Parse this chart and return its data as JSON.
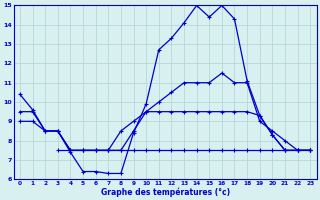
{
  "xlabel": "Graphe des températures (°c)",
  "bg_color": "#d8f0f0",
  "line_color": "#0000cc",
  "grid_color": "#b0d4d4",
  "xlim": [
    -0.5,
    23.5
  ],
  "ylim": [
    6,
    15
  ],
  "yticks": [
    6,
    7,
    8,
    9,
    10,
    11,
    12,
    13,
    14,
    15
  ],
  "xticks": [
    0,
    1,
    2,
    3,
    4,
    5,
    6,
    7,
    8,
    9,
    10,
    11,
    12,
    13,
    14,
    15,
    16,
    17,
    18,
    19,
    20,
    21,
    22,
    23
  ],
  "s1_x": [
    0,
    1,
    2,
    3,
    4,
    5,
    6,
    7,
    8,
    9,
    10,
    11,
    12,
    13,
    14,
    15,
    16,
    17,
    18,
    19,
    20,
    21,
    22,
    23
  ],
  "s1_y": [
    10.4,
    9.6,
    8.5,
    8.5,
    7.4,
    6.4,
    6.4,
    6.3,
    6.3,
    8.4,
    9.9,
    12.7,
    13.3,
    14.1,
    15.0,
    14.4,
    15.0,
    14.3,
    11.1,
    9.3,
    8.3,
    7.5,
    7.5,
    7.5
  ],
  "s2_x": [
    0,
    1,
    2,
    3,
    4,
    5,
    6,
    7,
    8,
    9,
    10,
    11,
    12,
    13,
    14,
    15,
    16,
    17,
    18,
    19,
    20,
    21,
    22,
    23
  ],
  "s2_y": [
    9.5,
    9.5,
    8.5,
    8.5,
    7.5,
    7.5,
    7.5,
    7.5,
    8.5,
    9.0,
    9.5,
    9.5,
    9.5,
    9.5,
    9.5,
    9.5,
    9.5,
    9.5,
    9.5,
    9.3,
    8.3,
    7.5,
    7.5,
    7.5
  ],
  "s3_x": [
    0,
    1,
    2,
    3,
    4,
    5,
    6,
    7,
    8,
    9,
    10,
    11,
    12,
    13,
    14,
    15,
    16,
    17,
    18,
    19,
    20,
    21,
    22,
    23
  ],
  "s3_y": [
    9.0,
    9.0,
    8.5,
    8.5,
    7.5,
    7.5,
    7.5,
    7.5,
    7.5,
    8.5,
    9.5,
    10.0,
    10.5,
    11.0,
    11.0,
    11.0,
    11.5,
    11.0,
    11.0,
    9.0,
    8.5,
    8.0,
    7.5,
    7.5
  ],
  "s4_x": [
    3,
    4,
    5,
    6,
    7,
    8,
    9,
    10,
    11,
    12,
    13,
    14,
    15,
    16,
    17,
    18,
    19,
    20,
    21,
    22,
    23
  ],
  "s4_y": [
    7.5,
    7.5,
    7.5,
    7.5,
    7.5,
    7.5,
    7.5,
    7.5,
    7.5,
    7.5,
    7.5,
    7.5,
    7.5,
    7.5,
    7.5,
    7.5,
    7.5,
    7.5,
    7.5,
    7.5,
    7.5
  ]
}
